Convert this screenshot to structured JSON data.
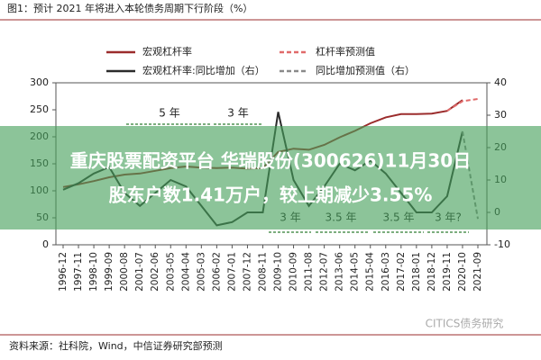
{
  "chart_data": {
    "type": "line",
    "title": "图1：预计 2021 年将进入本轮债务周期下行阶段（%）",
    "categories": [
      "1996-12",
      "1997-11",
      "1998-10",
      "1999-09",
      "2000-08",
      "2001-07",
      "2002-06",
      "2003-05",
      "2004-04",
      "2005-03",
      "2006-02",
      "2007-01",
      "2007-12",
      "2008-11",
      "2009-10",
      "2010-09",
      "2011-08",
      "2012-07",
      "2013-06",
      "2014-05",
      "2015-04",
      "2016-03",
      "2017-02",
      "2018-01",
      "2018-12",
      "2019-11",
      "2020-10",
      "2021-09"
    ],
    "series": [
      {
        "name": "宏观杠杆率",
        "color": "#9b2c2c",
        "style": "solid",
        "axis": "y",
        "values": [
          107,
          112,
          118,
          125,
          130,
          132,
          137,
          142,
          145,
          143,
          142,
          143,
          141,
          142,
          172,
          178,
          176,
          185,
          199,
          211,
          225,
          236,
          242,
          242,
          243,
          248,
          268,
          null
        ]
      },
      {
        "name": "杠杆率预测值",
        "color": "#e06a6a",
        "style": "dashed",
        "axis": "y",
        "values": [
          null,
          null,
          null,
          null,
          null,
          null,
          null,
          null,
          null,
          null,
          null,
          null,
          null,
          null,
          null,
          null,
          null,
          null,
          null,
          null,
          null,
          null,
          null,
          null,
          null,
          248,
          266,
          270
        ]
      },
      {
        "name": "宏观杠杆率:同比增加（右）",
        "color": "#2b2b2b",
        "style": "solid",
        "axis": "y2",
        "values": [
          7,
          9,
          12,
          14,
          6,
          2,
          6,
          10,
          8,
          2,
          -4,
          -3,
          0,
          0,
          31,
          10,
          2,
          8,
          15,
          13,
          16,
          12,
          6,
          0,
          0,
          5,
          25,
          null
        ]
      },
      {
        "name": "同比增加预测值（右）",
        "color": "#8a8a8a",
        "style": "dashed",
        "axis": "y2",
        "values": [
          null,
          null,
          null,
          null,
          null,
          null,
          null,
          null,
          null,
          null,
          null,
          null,
          null,
          null,
          null,
          null,
          null,
          null,
          null,
          null,
          null,
          null,
          null,
          null,
          null,
          null,
          25,
          -2
        ]
      }
    ],
    "ylim": [
      0,
      300
    ],
    "yticks": [
      0,
      50,
      100,
      150,
      200,
      250,
      300
    ],
    "y2lim": [
      -10,
      40
    ],
    "y2ticks": [
      -10,
      0,
      10,
      20,
      30,
      40
    ],
    "annotations": [
      "5 年",
      "3 年",
      "3 年",
      "3.5 年",
      "3.5 年",
      "3 年?"
    ],
    "source": "资料来源：社科院，Wind，中信证券研究部预测",
    "watermark": "CITICS债务研究",
    "overlay": [
      "重庆股票配资平台 华瑞股份(300626)11月30日",
      "股东户数1.41万户，较上期减少3.55%"
    ]
  }
}
